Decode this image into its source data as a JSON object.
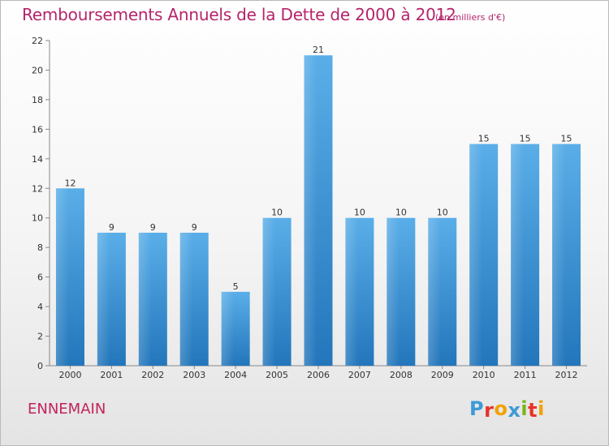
{
  "chart_data": {
    "type": "bar",
    "title": "Remboursements Annuels de la Dette de 2000 à 2012",
    "subtitle": "(en milliers d'€)",
    "categories": [
      "2000",
      "2001",
      "2002",
      "2003",
      "2004",
      "2005",
      "2006",
      "2007",
      "2008",
      "2009",
      "2010",
      "2011",
      "2012"
    ],
    "values": [
      12,
      9,
      9,
      9,
      5,
      10,
      21,
      10,
      10,
      10,
      15,
      15,
      15
    ],
    "xlabel": "",
    "ylabel": "",
    "ylim": [
      0,
      22
    ],
    "yticks": [
      0,
      2,
      4,
      6,
      8,
      10,
      12,
      14,
      16,
      18,
      20,
      22
    ],
    "grid": false,
    "legend": "none",
    "bar_color": "#3f93d6"
  },
  "footer": {
    "commune": "ENNEMAIN",
    "logo_letters": [
      "P",
      "r",
      "o",
      "x",
      "i",
      "t",
      "i"
    ],
    "logo_colors": [
      "#3d9ad6",
      "#e8332a",
      "#f2a200",
      "#3d9ad6",
      "#7ab51d",
      "#e8332a",
      "#f2a200"
    ]
  }
}
